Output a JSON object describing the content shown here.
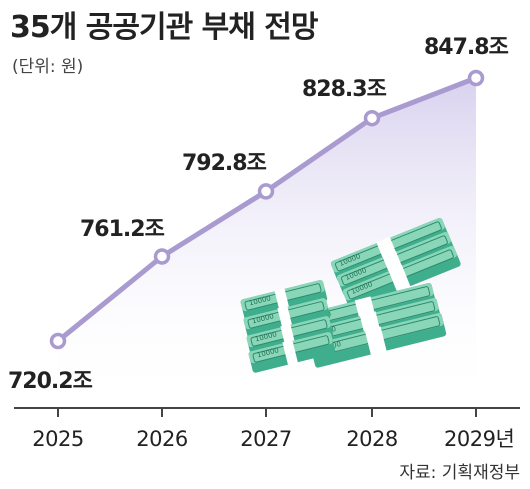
{
  "title": "35개 공공기관 부채 전망",
  "unit": "(단위: 원)",
  "source": "자료: 기획재정부",
  "colors": {
    "line": "#a99bd0",
    "area_top": "#d9d3ef",
    "axis": "#444444"
  },
  "chart_data": {
    "type": "area",
    "categories": [
      "2025",
      "2026",
      "2027",
      "2028",
      "2029년"
    ],
    "values": [
      720.2,
      761.2,
      792.8,
      828.3,
      847.8
    ],
    "value_labels": [
      "720.2조",
      "761.2조",
      "792.8조",
      "828.3조",
      "847.8조"
    ],
    "title": "35개 공공기관 부채 전망",
    "xlabel": "",
    "ylabel": "",
    "grid": false,
    "legend": "none"
  },
  "illustration": {
    "icon": "banknote-stacks-icon",
    "note_value": "10000"
  }
}
